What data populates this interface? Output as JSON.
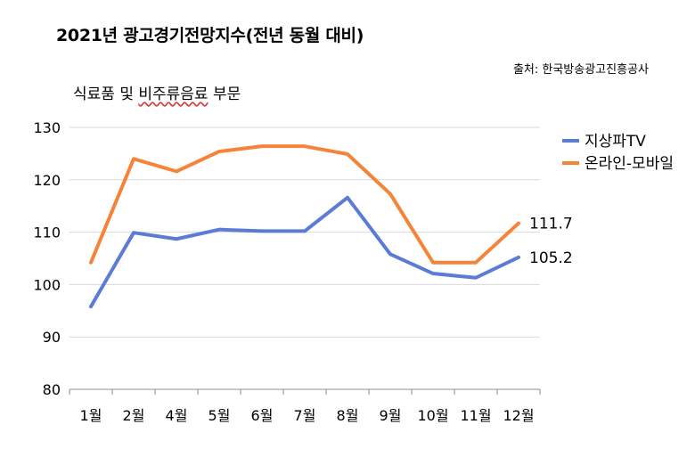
{
  "header": {
    "title": "2021년 광고경기전망지수(전년 동월 대비)",
    "source": "출처: 한국방송광고진흥공사",
    "subtitle_prefix": "식료품 및 ",
    "subtitle_mid": "비주류음료",
    "subtitle_suffix": " 부문"
  },
  "chart_data": {
    "type": "line",
    "categories": [
      "1월",
      "2월",
      "4월",
      "5월",
      "6월",
      "7월",
      "8월",
      "9월",
      "10월",
      "11월",
      "12월"
    ],
    "ylim": [
      80,
      130
    ],
    "yticks": [
      80,
      90,
      100,
      110,
      120,
      130
    ],
    "grid": true,
    "legend_position": "right",
    "series": [
      {
        "name": "지상파TV",
        "color": "#5b7bd5",
        "values": [
          95.8,
          109.9,
          108.7,
          110.5,
          110.2,
          110.2,
          116.6,
          105.8,
          102.1,
          101.3,
          105.2
        ],
        "end_label": "105.2"
      },
      {
        "name": "온라인-모바일",
        "color": "#f5843a",
        "values": [
          104.2,
          124.0,
          121.6,
          125.4,
          126.4,
          126.4,
          124.9,
          117.3,
          104.2,
          104.2,
          111.7
        ],
        "end_label": "111.7"
      }
    ]
  }
}
